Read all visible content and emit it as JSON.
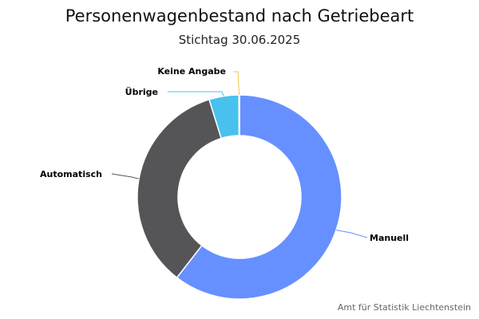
{
  "chart_data": {
    "type": "pie",
    "variant": "donut",
    "title": "Personenwagenbestand nach Getriebeart",
    "subtitle": "Stichtag 30.06.2025",
    "credits": "Amt für Statistik Liechtenstein",
    "unit": "percent (estimated)",
    "slices": [
      {
        "label": "Manuell",
        "value": 60.5,
        "color": "#6690ff"
      },
      {
        "label": "Automatisch",
        "value": 34.7,
        "color": "#555557"
      },
      {
        "label": "Übrige",
        "value": 4.7,
        "color": "#48c1ef"
      },
      {
        "label": "Keine Angabe",
        "value": 0.1,
        "color": "#f5c748"
      }
    ]
  }
}
